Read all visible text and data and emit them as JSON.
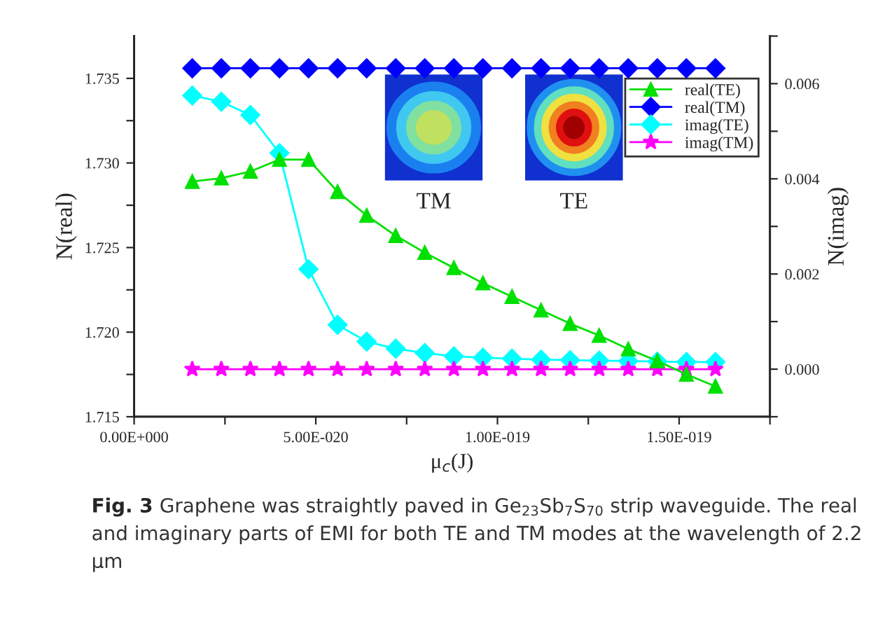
{
  "chart_data": {
    "type": "line",
    "xlabel": "μ$_{c}$(J)",
    "ylabel": "N(real)",
    "y2label": "N(imag)",
    "x": [
      1.6e-20,
      2.4e-20,
      3.2e-20,
      4e-20,
      4.8e-20,
      5.6e-20,
      6.4e-20,
      7.2e-20,
      8e-20,
      8.8e-20,
      9.6e-20,
      1.04e-19,
      1.12e-19,
      1.2e-19,
      1.28e-19,
      1.36e-19,
      1.44e-19,
      1.52e-19,
      1.6e-19
    ],
    "series": [
      {
        "name": "real(TE)",
        "color": "#00e000",
        "marker": "triangle",
        "values": [
          1.7289,
          1.7291,
          1.7295,
          1.7302,
          1.7302,
          1.7283,
          1.7269,
          1.7257,
          1.7247,
          1.7238,
          1.7229,
          1.7221,
          1.7213,
          1.7205,
          1.7198,
          1.719,
          1.7183,
          1.7175,
          1.7168
        ]
      },
      {
        "name": "real(TM)",
        "color": "#0000ff",
        "marker": "diamond",
        "values": [
          1.7356,
          1.7356,
          1.7356,
          1.7356,
          1.7356,
          1.7356,
          1.7356,
          1.7356,
          1.7356,
          1.7356,
          1.7356,
          1.7356,
          1.7356,
          1.7356,
          1.7356,
          1.7356,
          1.7356,
          1.7356,
          1.7356
        ]
      },
      {
        "name": "imag(TE)",
        "color": "#00ffff",
        "marker": "diamond",
        "axis": "y2",
        "values": [
          0.00575,
          0.00562,
          0.00534,
          0.00454,
          0.0021,
          0.00093,
          0.00058,
          0.00043,
          0.00034,
          0.00027,
          0.00024,
          0.00022,
          0.0002,
          0.00019,
          0.00018,
          0.00017,
          0.00016,
          0.00015,
          0.00015
        ]
      },
      {
        "name": "imag(TM)",
        "color": "#ff00ff",
        "marker": "star",
        "axis": "y2",
        "values": [
          0.0,
          0.0,
          0.0,
          0.0,
          0.0,
          0.0,
          0.0,
          0.0,
          0.0,
          0.0,
          0.0,
          0.0,
          0.0,
          0.0,
          0.0,
          0.0,
          0.0,
          0.0,
          0.0
        ]
      }
    ],
    "xlim": [
      0,
      1.75e-19
    ],
    "xticks": [
      {
        "value": 0,
        "label": "0.00E+000"
      },
      {
        "value": 2.5e-20,
        "label": null
      },
      {
        "value": 5e-20,
        "label": "5.00E-020"
      },
      {
        "value": 7.5e-20,
        "label": null
      },
      {
        "value": 1e-19,
        "label": "1.00E-019"
      },
      {
        "value": 1.25e-19,
        "label": null
      },
      {
        "value": 1.5e-19,
        "label": "1.50E-019"
      },
      {
        "value": 1.75e-19,
        "label": null
      }
    ],
    "ylim": [
      1.715,
      1.7375
    ],
    "yticks": [
      {
        "value": 1.715,
        "label": "1.715"
      },
      {
        "value": 1.7175,
        "label": null
      },
      {
        "value": 1.72,
        "label": "1.720"
      },
      {
        "value": 1.7225,
        "label": null
      },
      {
        "value": 1.725,
        "label": "1.725"
      },
      {
        "value": 1.7275,
        "label": null
      },
      {
        "value": 1.73,
        "label": "1.730"
      },
      {
        "value": 1.7325,
        "label": null
      },
      {
        "value": 1.735,
        "label": "1.735"
      }
    ],
    "y2lim": [
      -0.001,
      0.007
    ],
    "y2ticks": [
      {
        "value": -0.001,
        "label": null
      },
      {
        "value": 0.0,
        "label": "0.000"
      },
      {
        "value": 0.001,
        "label": null
      },
      {
        "value": 0.002,
        "label": "0.002"
      },
      {
        "value": 0.003,
        "label": null
      },
      {
        "value": 0.004,
        "label": "0.004"
      },
      {
        "value": 0.005,
        "label": null
      },
      {
        "value": 0.006,
        "label": "0.006"
      },
      {
        "value": 0.007,
        "label": null
      }
    ],
    "legend": "top right",
    "grid": false,
    "line_style": "solid",
    "annotations": [
      "TM",
      "TE",
      "Fig. 3",
      "Graphene was straightly paved in Ge$_{23}$Sb$_{7}$S$_{70}$ strip waveguide. The real and imaginary parts of EMI for both TE and TM modes at the wavelength of 2.2 μm"
    ]
  }
}
